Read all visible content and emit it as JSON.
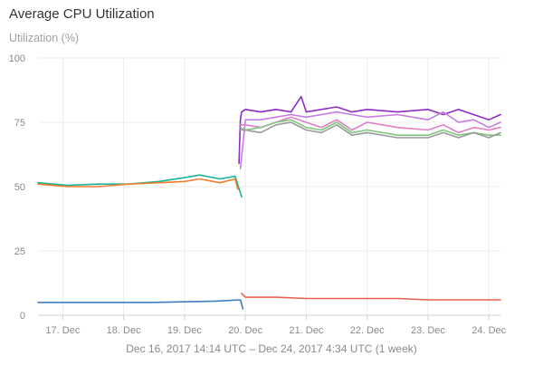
{
  "header": {
    "title": "Average CPU Utilization",
    "ylabel": "Utilization (%)",
    "range": "Dec 16, 2017 14:14 UTC – Dec 24, 2017 4:34 UTC (1 week)"
  },
  "chart_data": {
    "type": "line",
    "title": "Average CPU Utilization",
    "ylabel": "Utilization (%)",
    "xlabel": "Dec 16, 2017 14:14 UTC – Dec 24, 2017 4:34 UTC (1 week)",
    "ylim": [
      0,
      100
    ],
    "y_ticks": [
      0,
      25,
      50,
      75,
      100
    ],
    "xlim": [
      "2017-12-16 14:14",
      "2017-12-24 04:34"
    ],
    "x_ticks": [
      {
        "label": "17. Dec",
        "date": "2017-12-17"
      },
      {
        "label": "18. Dec",
        "date": "2017-12-18"
      },
      {
        "label": "19. Dec",
        "date": "2017-12-19"
      },
      {
        "label": "20. Dec",
        "date": "2017-12-20"
      },
      {
        "label": "21. Dec",
        "date": "2017-12-21"
      },
      {
        "label": "22. Dec",
        "date": "2017-12-22"
      },
      {
        "label": "23. Dec",
        "date": "2017-12-23"
      },
      {
        "label": "24. Dec",
        "date": "2017-12-24"
      }
    ],
    "grid": true,
    "series": [
      {
        "color": "#1ab394",
        "x": [
          "2017-12-16 14:14",
          "2017-12-17 02:00",
          "2017-12-17 14:00",
          "2017-12-18 02:00",
          "2017-12-18 14:00",
          "2017-12-19 00:00",
          "2017-12-19 06:00",
          "2017-12-19 14:00",
          "2017-12-19 20:00",
          "2017-12-19 22:30"
        ],
        "y": [
          51.5,
          50.5,
          51,
          51,
          52,
          53.5,
          54.5,
          53,
          54,
          46
        ]
      },
      {
        "color": "#f07d2c",
        "x": [
          "2017-12-16 14:14",
          "2017-12-17 02:00",
          "2017-12-17 14:00",
          "2017-12-18 02:00",
          "2017-12-18 14:00",
          "2017-12-19 00:00",
          "2017-12-19 06:00",
          "2017-12-19 14:00",
          "2017-12-19 20:00",
          "2017-12-19 21:00"
        ],
        "y": [
          51,
          50,
          50,
          51,
          51.5,
          52,
          53,
          51.5,
          53,
          49
        ]
      },
      {
        "color": "#3f7fbf",
        "x": [
          "2017-12-16 14:14",
          "2017-12-17 12:00",
          "2017-12-18 12:00",
          "2017-12-19 12:00",
          "2017-12-19 22:00",
          "2017-12-19 23:00"
        ],
        "y": [
          5,
          5,
          5,
          5.5,
          6,
          2.5
        ]
      },
      {
        "color": "#e8604c",
        "x": [
          "2017-12-19 22:30",
          "2017-12-20 00:00",
          "2017-12-20 12:00",
          "2017-12-21 00:00",
          "2017-12-21 12:00",
          "2017-12-22 00:00",
          "2017-12-22 12:00",
          "2017-12-23 00:00",
          "2017-12-23 12:00",
          "2017-12-24 04:34"
        ],
        "y": [
          8.5,
          7,
          7,
          6.5,
          6.5,
          6.5,
          6.5,
          6,
          6,
          6
        ]
      },
      {
        "color": "#8e2bc9",
        "x": [
          "2017-12-19 21:30",
          "2017-12-19 22:00",
          "2017-12-19 22:30",
          "2017-12-20 00:00",
          "2017-12-20 06:00",
          "2017-12-20 12:00",
          "2017-12-20 18:00",
          "2017-12-20 22:00",
          "2017-12-21 00:00",
          "2017-12-21 06:00",
          "2017-12-21 12:00",
          "2017-12-21 18:00",
          "2017-12-22 00:00",
          "2017-12-22 12:00",
          "2017-12-23 00:00",
          "2017-12-23 06:00",
          "2017-12-23 12:00",
          "2017-12-23 18:00",
          "2017-12-24 00:00",
          "2017-12-24 04:34"
        ],
        "y": [
          59,
          76,
          79,
          80,
          79,
          80,
          79,
          85,
          79,
          80,
          81,
          79,
          80,
          79,
          80,
          78,
          80,
          78,
          76,
          78
        ]
      },
      {
        "color": "#c67de0",
        "x": [
          "2017-12-19 22:00",
          "2017-12-20 00:00",
          "2017-12-20 06:00",
          "2017-12-20 12:00",
          "2017-12-20 18:00",
          "2017-12-21 00:00",
          "2017-12-21 06:00",
          "2017-12-21 12:00",
          "2017-12-21 18:00",
          "2017-12-22 00:00",
          "2017-12-22 12:00",
          "2017-12-23 00:00",
          "2017-12-23 06:00",
          "2017-12-23 12:00",
          "2017-12-23 18:00",
          "2017-12-24 00:00",
          "2017-12-24 04:34"
        ],
        "y": [
          57,
          76,
          76,
          77,
          78,
          77,
          78,
          79,
          78,
          77,
          78,
          76,
          79,
          75,
          76,
          73,
          75
        ]
      },
      {
        "color": "#e07ec7",
        "x": [
          "2017-12-19 22:00",
          "2017-12-20 00:00",
          "2017-12-20 06:00",
          "2017-12-20 12:00",
          "2017-12-20 18:00",
          "2017-12-21 00:00",
          "2017-12-21 06:00",
          "2017-12-21 12:00",
          "2017-12-21 18:00",
          "2017-12-22 00:00",
          "2017-12-22 12:00",
          "2017-12-23 00:00",
          "2017-12-23 06:00",
          "2017-12-23 12:00",
          "2017-12-23 18:00",
          "2017-12-24 00:00",
          "2017-12-24 04:34"
        ],
        "y": [
          74,
          74,
          73,
          75,
          77,
          75,
          73,
          76,
          72,
          75,
          73,
          72,
          74,
          71,
          73,
          72,
          73
        ]
      },
      {
        "color": "#7fc67a",
        "x": [
          "2017-12-19 22:00",
          "2017-12-20 00:00",
          "2017-12-20 06:00",
          "2017-12-20 12:00",
          "2017-12-20 18:00",
          "2017-12-21 00:00",
          "2017-12-21 06:00",
          "2017-12-21 12:00",
          "2017-12-21 18:00",
          "2017-12-22 00:00",
          "2017-12-22 12:00",
          "2017-12-23 00:00",
          "2017-12-23 06:00",
          "2017-12-23 12:00",
          "2017-12-23 18:00",
          "2017-12-24 00:00",
          "2017-12-24 04:34"
        ],
        "y": [
          73,
          72,
          73,
          75,
          76,
          73,
          72,
          75,
          71,
          72,
          70,
          70,
          72,
          70,
          71,
          70,
          70
        ]
      },
      {
        "color": "#9a9a9a",
        "x": [
          "2017-12-19 22:00",
          "2017-12-20 00:00",
          "2017-12-20 06:00",
          "2017-12-20 12:00",
          "2017-12-20 18:00",
          "2017-12-21 00:00",
          "2017-12-21 06:00",
          "2017-12-21 12:00",
          "2017-12-21 18:00",
          "2017-12-22 00:00",
          "2017-12-22 12:00",
          "2017-12-23 00:00",
          "2017-12-23 06:00",
          "2017-12-23 12:00",
          "2017-12-23 18:00",
          "2017-12-24 00:00",
          "2017-12-24 04:34"
        ],
        "y": [
          72,
          72,
          71,
          74,
          75,
          72,
          71,
          74,
          70,
          71,
          69,
          69,
          71,
          69,
          71,
          69,
          71
        ]
      }
    ]
  }
}
